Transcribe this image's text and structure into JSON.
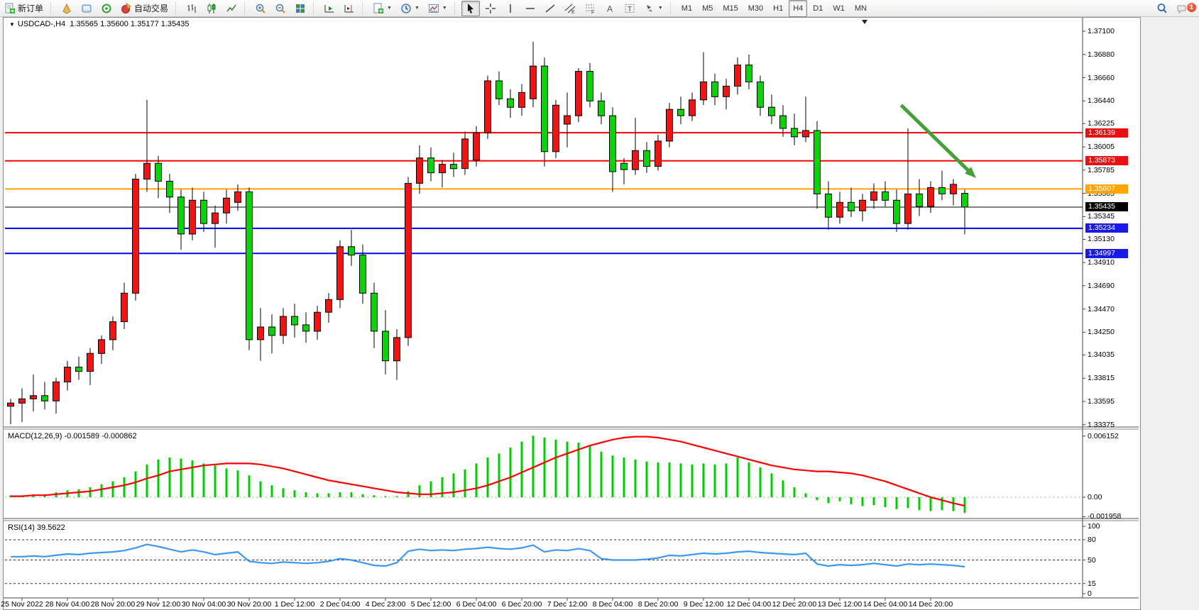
{
  "toolbar": {
    "new_order_label": "新订单",
    "auto_trading_label": "自动交易",
    "timeframes": [
      "M1",
      "M5",
      "M15",
      "M30",
      "H1",
      "H4",
      "D1",
      "W1",
      "MN"
    ],
    "active_timeframe": "H4",
    "notification_count": "1"
  },
  "chart": {
    "title_symbol": "USDCAD-,H4",
    "title_ohlc": "1.35565 1.35600 1.35177 1.35435"
  },
  "colors": {
    "up_candle": "#f01414",
    "down_candle": "#0bd30b",
    "wick": "#000000",
    "level_red": "#ff0000",
    "level_orange": "#ffa500",
    "level_blue": "#0000ff",
    "level_black": "#000000",
    "macd_histogram": "#00cc00",
    "macd_signal": "#ff0000",
    "rsi_line": "#3e96f0",
    "arrow_green": "#44a038",
    "badge_red": "#e81010",
    "badge_orange": "#ffa500",
    "badge_blue": "#1a1ae6",
    "badge_black": "#000000"
  },
  "chart_data": {
    "type": "candlestick",
    "symbol": "USDCAD-",
    "period": "H4",
    "ohlc_current": {
      "open": 1.35565,
      "high": 1.356,
      "low": 1.35177,
      "close": 1.35435
    },
    "price_axis": {
      "top_price": 1.371,
      "bottom_price": 1.33375,
      "ticks": [
        "1.37100",
        "1.36880",
        "1.36660",
        "1.36440",
        "1.36225",
        "1.36005",
        "1.35785",
        "1.35565",
        "1.35345",
        "1.35130",
        "1.34910",
        "1.34690",
        "1.34470",
        "1.34250",
        "1.34035",
        "1.33815",
        "1.33595",
        "1.33375"
      ],
      "badges": [
        {
          "label": "1.36139",
          "price": 1.36139,
          "color_key": "badge_red"
        },
        {
          "label": "1.35873",
          "price": 1.35873,
          "color_key": "badge_red"
        },
        {
          "label": "1.35607",
          "price": 1.35607,
          "color_key": "badge_orange"
        },
        {
          "label": "1.35435",
          "price": 1.35435,
          "color_key": "badge_black"
        },
        {
          "label": "1.35234",
          "price": 1.35234,
          "color_key": "badge_blue"
        },
        {
          "label": "1.34997",
          "price": 1.34997,
          "color_key": "badge_blue"
        }
      ]
    },
    "levels": [
      {
        "price": 1.36139,
        "color_key": "level_red",
        "width": 2
      },
      {
        "price": 1.35873,
        "color_key": "level_red",
        "width": 2
      },
      {
        "price": 1.35607,
        "color_key": "level_orange",
        "width": 2
      },
      {
        "price": 1.35435,
        "color_key": "level_black",
        "width": 1
      },
      {
        "price": 1.35234,
        "color_key": "level_blue",
        "width": 2
      },
      {
        "price": 1.34997,
        "color_key": "level_blue",
        "width": 2
      }
    ],
    "candles": [
      [
        1.3355,
        1.3362,
        1.3338,
        1.3358
      ],
      [
        1.3358,
        1.3372,
        1.334,
        1.3362
      ],
      [
        1.3362,
        1.3385,
        1.335,
        1.3365
      ],
      [
        1.3365,
        1.3378,
        1.3352,
        1.336
      ],
      [
        1.336,
        1.3382,
        1.3348,
        1.3378
      ],
      [
        1.3378,
        1.3398,
        1.337,
        1.3392
      ],
      [
        1.3392,
        1.3402,
        1.338,
        1.3388
      ],
      [
        1.3388,
        1.341,
        1.3375,
        1.3405
      ],
      [
        1.3405,
        1.3422,
        1.3395,
        1.3418
      ],
      [
        1.3418,
        1.344,
        1.3408,
        1.3435
      ],
      [
        1.3435,
        1.3472,
        1.3428,
        1.3462
      ],
      [
        1.3462,
        1.3575,
        1.3455,
        1.357
      ],
      [
        1.357,
        1.3645,
        1.3558,
        1.3585
      ],
      [
        1.3585,
        1.3592,
        1.3552,
        1.3568
      ],
      [
        1.3568,
        1.3575,
        1.3538,
        1.3553
      ],
      [
        1.3553,
        1.356,
        1.3503,
        1.3518
      ],
      [
        1.3518,
        1.3562,
        1.3512,
        1.355
      ],
      [
        1.355,
        1.3558,
        1.352,
        1.3528
      ],
      [
        1.3528,
        1.3545,
        1.3505,
        1.3538
      ],
      [
        1.3538,
        1.356,
        1.3528,
        1.3552
      ],
      [
        1.3548,
        1.3565,
        1.354,
        1.3558
      ],
      [
        1.3558,
        1.3562,
        1.3408,
        1.3418
      ],
      [
        1.3418,
        1.3448,
        1.3398,
        1.343
      ],
      [
        1.343,
        1.3442,
        1.3405,
        1.3422
      ],
      [
        1.3422,
        1.3448,
        1.3414,
        1.344
      ],
      [
        1.344,
        1.3452,
        1.342,
        1.3432
      ],
      [
        1.3432,
        1.3444,
        1.3415,
        1.3426
      ],
      [
        1.3426,
        1.345,
        1.3418,
        1.3444
      ],
      [
        1.3444,
        1.3462,
        1.3434,
        1.3456
      ],
      [
        1.3456,
        1.3512,
        1.3448,
        1.3506
      ],
      [
        1.3506,
        1.3522,
        1.3488,
        1.3498
      ],
      [
        1.3498,
        1.3508,
        1.3452,
        1.3462
      ],
      [
        1.3462,
        1.3472,
        1.341,
        1.3426
      ],
      [
        1.3426,
        1.3446,
        1.3385,
        1.3398
      ],
      [
        1.3398,
        1.3428,
        1.338,
        1.342
      ],
      [
        1.342,
        1.3572,
        1.3412,
        1.3566
      ],
      [
        1.3566,
        1.3602,
        1.3556,
        1.359
      ],
      [
        1.359,
        1.36,
        1.3568,
        1.3576
      ],
      [
        1.3576,
        1.3588,
        1.3562,
        1.3584
      ],
      [
        1.3584,
        1.3595,
        1.3572,
        1.358
      ],
      [
        1.358,
        1.3615,
        1.3574,
        1.3608
      ],
      [
        1.3588,
        1.362,
        1.3582,
        1.3614
      ],
      [
        1.3614,
        1.3668,
        1.3608,
        1.3663
      ],
      [
        1.3663,
        1.3672,
        1.364,
        1.3646
      ],
      [
        1.3646,
        1.3655,
        1.3628,
        1.3638
      ],
      [
        1.3638,
        1.366,
        1.363,
        1.3652
      ],
      [
        1.3646,
        1.37,
        1.3638,
        1.3677
      ],
      [
        1.3677,
        1.3685,
        1.3582,
        1.3596
      ],
      [
        1.3596,
        1.3645,
        1.359,
        1.364
      ],
      [
        1.3622,
        1.3652,
        1.36,
        1.363
      ],
      [
        1.363,
        1.3675,
        1.3624,
        1.3672
      ],
      [
        1.3672,
        1.368,
        1.3638,
        1.3644
      ],
      [
        1.3644,
        1.3652,
        1.3622,
        1.363
      ],
      [
        1.363,
        1.3638,
        1.3558,
        1.3577
      ],
      [
        1.3585,
        1.359,
        1.3565,
        1.3579
      ],
      [
        1.3579,
        1.3628,
        1.3574,
        1.3597
      ],
      [
        1.3597,
        1.3605,
        1.3576,
        1.3582
      ],
      [
        1.3582,
        1.3612,
        1.3578,
        1.3606
      ],
      [
        1.3606,
        1.3642,
        1.36,
        1.3636
      ],
      [
        1.3636,
        1.3648,
        1.3622,
        1.363
      ],
      [
        1.363,
        1.3652,
        1.3625,
        1.3645
      ],
      [
        1.3645,
        1.369,
        1.364,
        1.3662
      ],
      [
        1.3662,
        1.367,
        1.364,
        1.3648
      ],
      [
        1.3648,
        1.3665,
        1.3636,
        1.3658
      ],
      [
        1.3658,
        1.3685,
        1.365,
        1.3678
      ],
      [
        1.3678,
        1.3688,
        1.3655,
        1.3662
      ],
      [
        1.3662,
        1.3668,
        1.363,
        1.3638
      ],
      [
        1.3638,
        1.365,
        1.3622,
        1.363
      ],
      [
        1.363,
        1.364,
        1.361,
        1.3618
      ],
      [
        1.3618,
        1.3632,
        1.3602,
        1.361
      ],
      [
        1.361,
        1.3648,
        1.3605,
        1.3616
      ],
      [
        1.3616,
        1.3625,
        1.3542,
        1.3556
      ],
      [
        1.3556,
        1.3568,
        1.3522,
        1.3534
      ],
      [
        1.3534,
        1.3558,
        1.3528,
        1.3548
      ],
      [
        1.3548,
        1.3562,
        1.3534,
        1.354
      ],
      [
        1.354,
        1.3556,
        1.353,
        1.355
      ],
      [
        1.355,
        1.3566,
        1.3542,
        1.3558
      ],
      [
        1.3558,
        1.3568,
        1.3544,
        1.355
      ],
      [
        1.355,
        1.356,
        1.352,
        1.3528
      ],
      [
        1.3528,
        1.3618,
        1.3522,
        1.3556
      ],
      [
        1.3556,
        1.357,
        1.3535,
        1.3544
      ],
      [
        1.3544,
        1.3568,
        1.3538,
        1.3562
      ],
      [
        1.3562,
        1.3578,
        1.355,
        1.3556
      ],
      [
        1.3556,
        1.357,
        1.3545,
        1.3565
      ],
      [
        1.35565,
        1.356,
        1.35177,
        1.35435
      ]
    ],
    "time_labels": [
      "25 Nov 2022",
      "28 Nov 04:00",
      "28 Nov 20:00",
      "29 Nov 12:00",
      "30 Nov 04:00",
      "30 Nov 20:00",
      "1 Dec 12:00",
      "2 Dec 04:00",
      "4 Dec 23:00",
      "5 Dec 12:00",
      "6 Dec 04:00",
      "6 Dec 20:00",
      "7 Dec 12:00",
      "8 Dec 04:00",
      "8 Dec 20:00",
      "9 Dec 12:00",
      "12 Dec 04:00",
      "12 Dec 20:00",
      "13 Dec 12:00",
      "14 Dec 04:00",
      "14 Dec 20:00"
    ],
    "time_label_indices": [
      1,
      5,
      9,
      13,
      17,
      21,
      25,
      29,
      33,
      37,
      41,
      45,
      49,
      53,
      57,
      61,
      65,
      69,
      73,
      77,
      81
    ],
    "macd": {
      "label": "MACD(12,26,9) -0.001589 -0.000862",
      "axis_labels": [
        "0.006152",
        "0.00",
        "-0.001958"
      ],
      "axis_values": [
        0.006152,
        0,
        -0.001958
      ],
      "histogram": [
        0.0002,
        0.0002,
        0.0003,
        0.0003,
        0.0005,
        0.0007,
        0.0008,
        0.001,
        0.0013,
        0.0016,
        0.002,
        0.0026,
        0.0033,
        0.0038,
        0.004,
        0.0039,
        0.0037,
        0.0034,
        0.0032,
        0.0029,
        0.0027,
        0.0022,
        0.0016,
        0.0012,
        0.0009,
        0.0007,
        0.0005,
        0.0004,
        0.0004,
        0.0005,
        0.0005,
        0.0003,
        0.0002,
        0.0001,
        0.0001,
        0.0006,
        0.0012,
        0.0016,
        0.002,
        0.0024,
        0.0028,
        0.0034,
        0.004,
        0.0044,
        0.005,
        0.0056,
        0.0062,
        0.006,
        0.0058,
        0.0056,
        0.0055,
        0.0052,
        0.0046,
        0.0042,
        0.004,
        0.0038,
        0.0036,
        0.0035,
        0.0035,
        0.0034,
        0.0033,
        0.0034,
        0.0033,
        0.0034,
        0.004,
        0.0035,
        0.003,
        0.0024,
        0.0017,
        0.001,
        0.0004,
        -0.0003,
        -0.0006,
        -0.0004,
        -0.0007,
        -0.0009,
        -0.0008,
        -0.001,
        -0.0012,
        -0.0011,
        -0.0013,
        -0.0014,
        -0.0013,
        -0.0014,
        -0.001589
      ],
      "signal": [
        0.0001,
        0.0001,
        0.0002,
        0.0002,
        0.0003,
        0.0004,
        0.0005,
        0.0006,
        0.0008,
        0.001,
        0.0012,
        0.0015,
        0.0019,
        0.0022,
        0.0026,
        0.0028,
        0.003,
        0.0032,
        0.0033,
        0.0034,
        0.0034,
        0.0034,
        0.0033,
        0.0031,
        0.0029,
        0.0026,
        0.0023,
        0.002,
        0.0017,
        0.0015,
        0.0013,
        0.0011,
        0.0009,
        0.0007,
        0.0005,
        0.0004,
        0.0003,
        0.0003,
        0.0004,
        0.0005,
        0.0007,
        0.0009,
        0.0012,
        0.0016,
        0.002,
        0.0025,
        0.003,
        0.0035,
        0.004,
        0.0044,
        0.0048,
        0.0052,
        0.0055,
        0.0058,
        0.006,
        0.0061,
        0.0061,
        0.006,
        0.0058,
        0.0056,
        0.0053,
        0.005,
        0.0047,
        0.0044,
        0.0041,
        0.0038,
        0.0035,
        0.0032,
        0.003,
        0.0028,
        0.0027,
        0.0026,
        0.0026,
        0.0025,
        0.0024,
        0.0022,
        0.0019,
        0.0016,
        0.0012,
        0.0008,
        0.0004,
        0.0,
        -0.0003,
        -0.0006,
        -0.000862
      ]
    },
    "rsi": {
      "label": "RSI(14) 39.5622",
      "axis_values": [
        100,
        80,
        50,
        15,
        0
      ],
      "dashed_levels": [
        80,
        50,
        15
      ],
      "values": [
        55,
        55,
        56,
        55,
        57,
        59,
        58,
        60,
        61,
        62,
        64,
        68,
        73,
        70,
        66,
        62,
        65,
        62,
        58,
        60,
        62,
        48,
        46,
        45,
        47,
        46,
        45,
        46,
        48,
        52,
        50,
        46,
        42,
        41,
        46,
        63,
        66,
        64,
        65,
        64,
        66,
        67,
        69,
        67,
        66,
        68,
        72,
        62,
        65,
        64,
        67,
        64,
        52,
        50,
        50,
        50,
        51,
        53,
        57,
        56,
        58,
        60,
        59,
        60,
        62,
        63,
        61,
        60,
        59,
        58,
        60,
        44,
        41,
        43,
        42,
        43,
        45,
        43,
        41,
        44,
        43,
        44,
        43,
        42,
        40
      ]
    },
    "annotation_arrow": {
      "from_index": 78.4,
      "from_price": 1.364,
      "to_index": 85.0,
      "to_price": 1.3571
    }
  }
}
